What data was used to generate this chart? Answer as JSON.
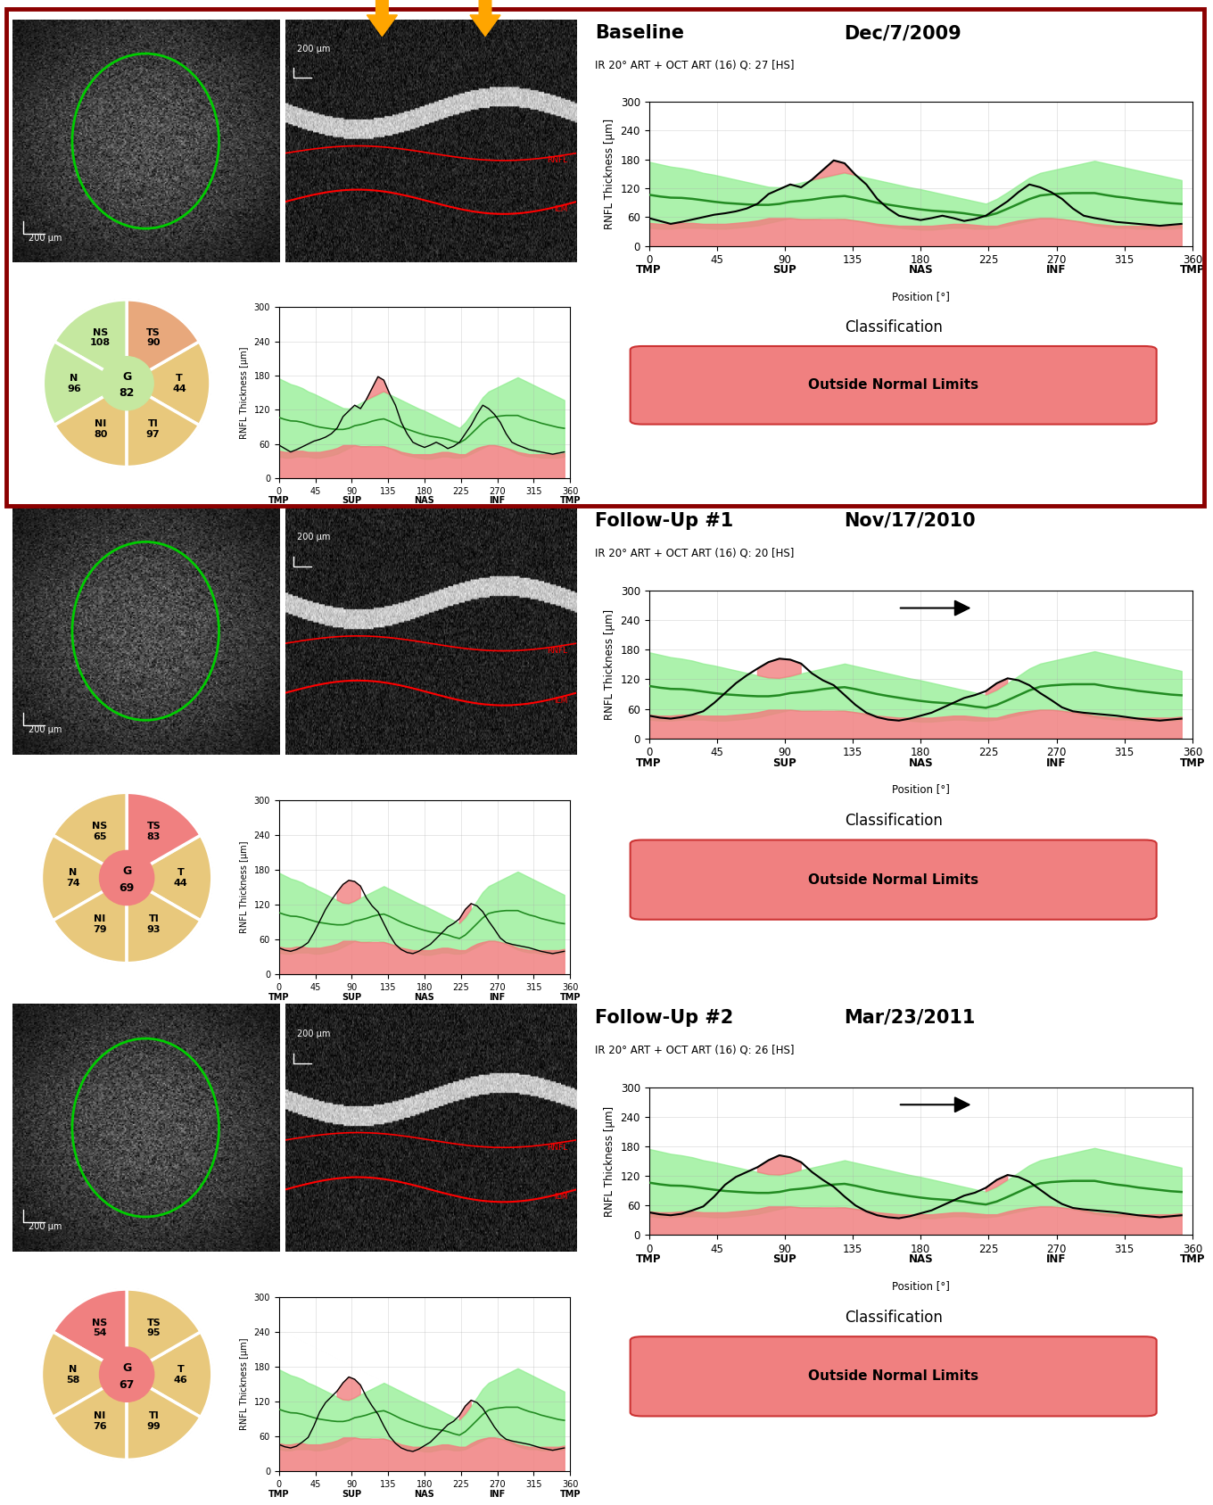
{
  "rows": [
    {
      "title": "Baseline",
      "date": "Dec/7/2009",
      "subtitle": "IR 20° ART + OCT ART (16) Q: 27 [HS]",
      "has_yellow_arrows": true,
      "has_black_arrow": false,
      "classification": "Outside Normal Limits",
      "pie": {
        "sectors": [
          "TS",
          "NS",
          "N",
          "NI",
          "TI",
          "T"
        ],
        "values": [
          90,
          108,
          96,
          80,
          97,
          44
        ],
        "global": 82,
        "colors": [
          "#E8A87C",
          "#C5E8A0",
          "#C5E8A0",
          "#E8C87C",
          "#E8C87C",
          "#E8C87C"
        ],
        "global_color": "#C5E8A0"
      },
      "rnfl_line": [
        58,
        52,
        46,
        50,
        55,
        60,
        65,
        68,
        72,
        78,
        88,
        108,
        118,
        128,
        122,
        138,
        158,
        178,
        172,
        148,
        128,
        98,
        78,
        63,
        58,
        54,
        58,
        63,
        58,
        52,
        56,
        63,
        78,
        93,
        112,
        128,
        122,
        112,
        98,
        78,
        63,
        58,
        54,
        50,
        48,
        46,
        44,
        42,
        44,
        46
      ],
      "mini_line": [
        58,
        52,
        46,
        50,
        55,
        60,
        65,
        68,
        72,
        78,
        88,
        108,
        118,
        128,
        122,
        138,
        158,
        178,
        172,
        148,
        128,
        98,
        78,
        63,
        58,
        54,
        58,
        63,
        58,
        52,
        56,
        63,
        78,
        93,
        112,
        128,
        122,
        112,
        98,
        78,
        63,
        58,
        54,
        50,
        48,
        46,
        44,
        42,
        44,
        46
      ],
      "row_border": true
    },
    {
      "title": "Follow-Up #1",
      "date": "Nov/17/2010",
      "subtitle": "IR 20° ART + OCT ART (16) Q: 20 [HS]",
      "has_yellow_arrows": false,
      "has_black_arrow": true,
      "classification": "Outside Normal Limits",
      "pie": {
        "sectors": [
          "TS",
          "NS",
          "N",
          "NI",
          "TI",
          "T"
        ],
        "values": [
          83,
          65,
          74,
          79,
          93,
          44
        ],
        "global": 69,
        "colors": [
          "#F08080",
          "#E8C87C",
          "#E8C87C",
          "#E8C87C",
          "#E8C87C",
          "#E8C87C"
        ],
        "global_color": "#F08080"
      },
      "rnfl_line": [
        46,
        42,
        40,
        43,
        48,
        55,
        72,
        92,
        112,
        128,
        142,
        155,
        162,
        160,
        152,
        132,
        118,
        108,
        88,
        68,
        52,
        43,
        38,
        36,
        40,
        46,
        52,
        62,
        72,
        82,
        88,
        96,
        112,
        122,
        118,
        108,
        92,
        78,
        63,
        55,
        52,
        50,
        48,
        46,
        43,
        40,
        38,
        36,
        38,
        40
      ],
      "mini_line": [
        46,
        42,
        40,
        43,
        48,
        55,
        72,
        92,
        112,
        128,
        142,
        155,
        162,
        160,
        152,
        132,
        118,
        108,
        88,
        68,
        52,
        43,
        38,
        36,
        40,
        46,
        52,
        62,
        72,
        82,
        88,
        96,
        112,
        122,
        118,
        108,
        92,
        78,
        63,
        55,
        52,
        50,
        48,
        46,
        43,
        40,
        38,
        36,
        38,
        40
      ],
      "row_border": false
    },
    {
      "title": "Follow-Up #2",
      "date": "Mar/23/2011",
      "subtitle": "IR 20° ART + OCT ART (16) Q: 26 [HS]",
      "has_yellow_arrows": false,
      "has_black_arrow": true,
      "classification": "Outside Normal Limits",
      "pie": {
        "sectors": [
          "TS",
          "NS",
          "N",
          "NI",
          "TI",
          "T"
        ],
        "values": [
          95,
          54,
          58,
          76,
          99,
          46
        ],
        "global": 67,
        "colors": [
          "#E8C87C",
          "#F08080",
          "#E8C87C",
          "#E8C87C",
          "#E8C87C",
          "#E8C87C"
        ],
        "global_color": "#F08080"
      },
      "rnfl_line": [
        46,
        42,
        40,
        43,
        50,
        58,
        78,
        102,
        118,
        128,
        138,
        152,
        162,
        158,
        148,
        128,
        112,
        98,
        78,
        60,
        48,
        40,
        36,
        34,
        38,
        44,
        50,
        60,
        70,
        80,
        86,
        96,
        112,
        122,
        118,
        108,
        92,
        76,
        63,
        55,
        52,
        50,
        48,
        46,
        43,
        40,
        38,
        36,
        38,
        40
      ],
      "mini_line": [
        46,
        42,
        40,
        43,
        50,
        58,
        78,
        102,
        118,
        128,
        138,
        152,
        162,
        158,
        148,
        128,
        112,
        98,
        78,
        60,
        48,
        40,
        36,
        34,
        38,
        44,
        50,
        60,
        70,
        80,
        86,
        96,
        112,
        122,
        118,
        108,
        92,
        76,
        63,
        55,
        52,
        50,
        48,
        46,
        43,
        40,
        38,
        36,
        38,
        40
      ],
      "row_border": false
    }
  ],
  "normal_band_upper": [
    175,
    170,
    165,
    162,
    158,
    152,
    148,
    143,
    138,
    133,
    128,
    123,
    122,
    126,
    132,
    137,
    142,
    147,
    152,
    147,
    142,
    137,
    132,
    127,
    122,
    118,
    113,
    108,
    103,
    98,
    93,
    88,
    98,
    112,
    127,
    142,
    152,
    157,
    162,
    167,
    172,
    177,
    172,
    167,
    162,
    157,
    152,
    147,
    142,
    137
  ],
  "normal_band_lower": [
    38,
    36,
    36,
    38,
    38,
    38,
    36,
    36,
    38,
    40,
    43,
    48,
    53,
    58,
    56,
    56,
    58,
    58,
    56,
    53,
    48,
    43,
    40,
    38,
    36,
    34,
    34,
    36,
    38,
    38,
    36,
    36,
    38,
    43,
    48,
    53,
    58,
    58,
    56,
    53,
    48,
    43,
    40,
    38,
    38,
    36,
    36,
    36,
    36,
    38
  ],
  "yellow_band_upper": [
    48,
    46,
    46,
    48,
    48,
    46,
    46,
    46,
    48,
    50,
    53,
    58,
    58,
    58,
    56,
    56,
    56,
    56,
    56,
    53,
    50,
    46,
    44,
    42,
    42,
    42,
    42,
    44,
    46,
    46,
    44,
    42,
    42,
    48,
    53,
    56,
    58,
    58,
    56,
    53,
    50,
    46,
    44,
    42,
    42,
    42,
    42,
    42,
    42,
    44
  ],
  "positions": [
    0,
    7.2,
    14.4,
    21.6,
    28.8,
    36,
    43.2,
    50.4,
    57.6,
    64.8,
    72,
    79.2,
    86.4,
    93.6,
    100.8,
    108,
    115.2,
    122.4,
    129.6,
    136.8,
    144,
    151.2,
    158.4,
    165.6,
    172.8,
    180,
    187.2,
    194.4,
    201.6,
    208.8,
    216,
    223.2,
    230.4,
    237.6,
    244.8,
    252,
    259.2,
    266.4,
    273.6,
    280.8,
    288,
    295.2,
    302.4,
    309.6,
    316.8,
    324,
    331.2,
    338.4,
    345.6,
    352.8
  ],
  "bg_color": "#ffffff",
  "border_color": "#8B0000",
  "green_band_color": "#90EE90",
  "red_band_color": "#F08080",
  "arrow_yellow": "#FFA500",
  "arrow_black": "#000000"
}
